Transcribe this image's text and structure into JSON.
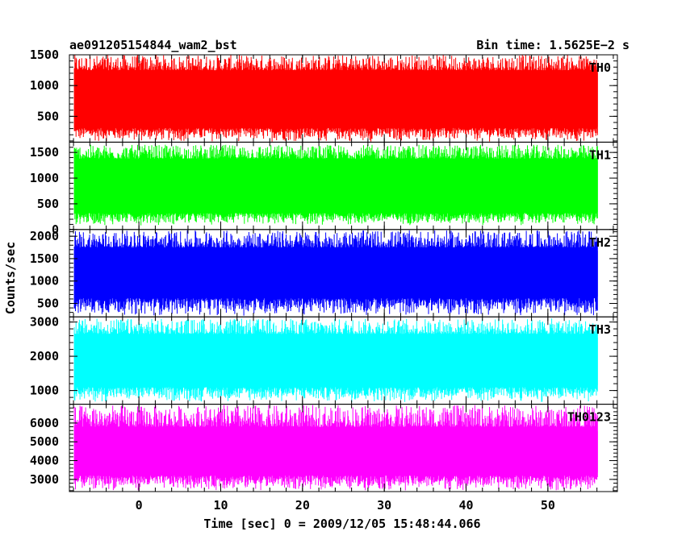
{
  "header": {
    "title": "ae091205154844_wam2_bst",
    "bin_time": "Bin time: 1.5625E−2 s"
  },
  "chart_data": {
    "type": "line",
    "title": "ae091205154844_wam2_bst",
    "subtitle": "Bin time: 1.5625E−2 s",
    "xlabel": "Time [sec] 0 = 2009/12/05 15:48:44.066",
    "ylabel": "Counts/sec",
    "xlim": [
      -8.5,
      58.5
    ],
    "data_x_range": [
      -7.9,
      56.1
    ],
    "x_ticks": [
      0,
      10,
      20,
      30,
      40,
      50
    ],
    "grid": false,
    "panels": [
      {
        "name": "TH0",
        "color": "#ff0000",
        "ylim": [
          80,
          1500
        ],
        "y_ticks": [
          500,
          1000,
          1500
        ],
        "band_low": 310,
        "band_high": 1250,
        "spike_min": 80,
        "spike_max": 1500,
        "mean": 780
      },
      {
        "name": "TH1",
        "color": "#00ff00",
        "ylim": [
          0,
          1700
        ],
        "y_ticks": [
          0,
          500,
          1000,
          1500
        ],
        "band_low": 320,
        "band_high": 1380,
        "spike_min": 80,
        "spike_max": 1650,
        "mean": 850
      },
      {
        "name": "TH2",
        "color": "#0000ff",
        "ylim": [
          200,
          2150
        ],
        "y_ticks": [
          500,
          1000,
          1500,
          2000
        ],
        "band_low": 620,
        "band_high": 1750,
        "spike_min": 220,
        "spike_max": 2130,
        "mean": 1180
      },
      {
        "name": "TH3",
        "color": "#00ffff",
        "ylim": [
          600,
          3150
        ],
        "y_ticks": [
          1000,
          2000,
          3000
        ],
        "band_low": 1100,
        "band_high": 2650,
        "spike_min": 650,
        "spike_max": 3100,
        "mean": 1880
      },
      {
        "name": "TH0123",
        "color": "#ff00ff",
        "ylim": [
          2350,
          7000
        ],
        "y_ticks": [
          3000,
          4000,
          5000,
          6000
        ],
        "band_low": 3200,
        "band_high": 5800,
        "spike_min": 2400,
        "spike_max": 6950,
        "mean": 4500
      }
    ]
  }
}
